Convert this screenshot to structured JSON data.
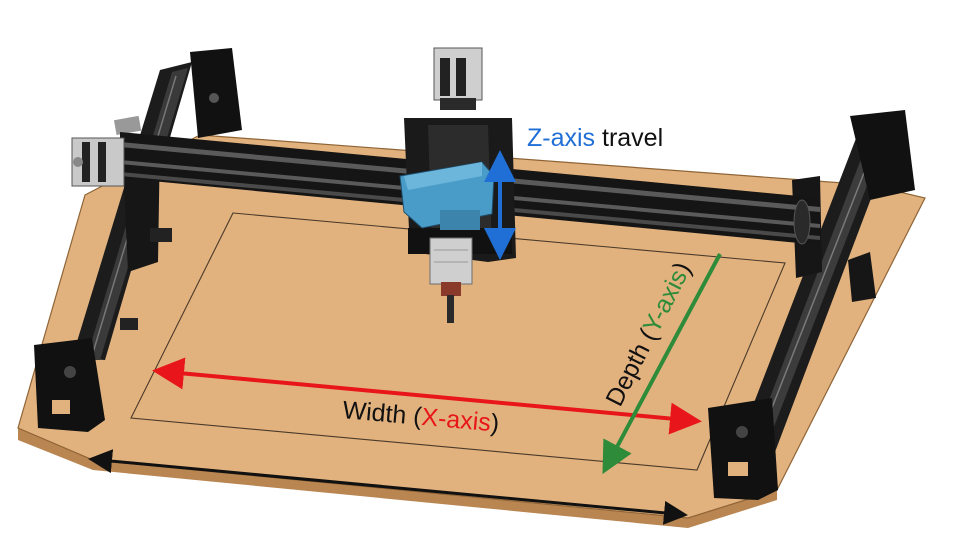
{
  "labels": {
    "z_axis": {
      "axis": "Z-axis",
      "rest": " travel"
    },
    "x_axis": {
      "prefix": "Width (",
      "axis": "X-axis",
      "suffix": ")"
    },
    "y_axis": {
      "prefix": "Depth (",
      "axis": "Y-axis",
      "suffix": ")"
    }
  },
  "colors": {
    "spoilboard": "#e2b27e",
    "spoilboard_edge": "#c99561",
    "extrusion": "#1b1b1b",
    "x_axis": "#e8161b",
    "y_axis": "#2e8b3a",
    "z_axis": "#1f6fd6",
    "router_body": "#4a9cc8",
    "spindle": "#cfcfcf"
  },
  "icons": {
    "spoilboard": "spoilboard",
    "gantry": "x-gantry-rail",
    "router": "router",
    "motor": "stepper-motor"
  }
}
